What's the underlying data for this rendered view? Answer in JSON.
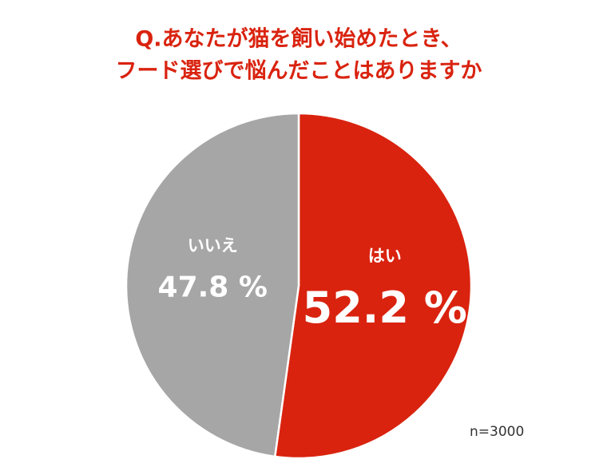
{
  "chart_data": {
    "type": "pie",
    "title": [
      "Q.あなたが猫を飼い始めたとき、",
      "フード選びで悩んだことはありますか"
    ],
    "categories": [
      "はい",
      "いいえ"
    ],
    "values": [
      52.2,
      47.8
    ],
    "value_labels": [
      "52.2 %",
      "47.8 %"
    ],
    "colors": [
      "#d9230f",
      "#a6a6a6"
    ],
    "annotation": "n=3000"
  }
}
